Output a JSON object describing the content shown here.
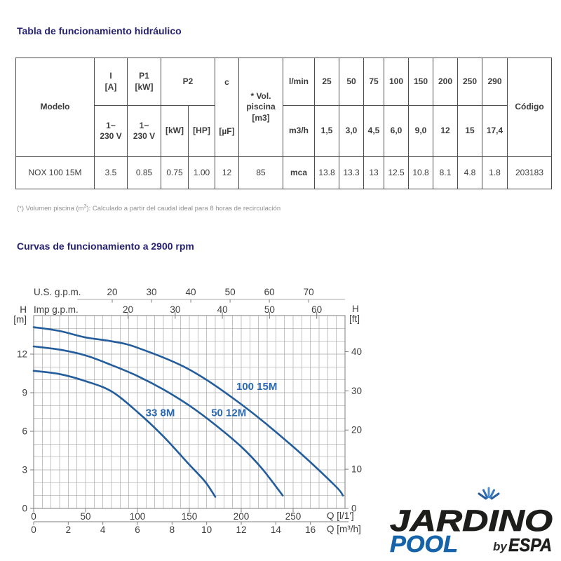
{
  "page": {
    "colors": {
      "navy_title": "#262273",
      "table_text": "#3c3c3c",
      "table_border": "#4d4d4d",
      "footnote_gray": "#8f8f8f",
      "grid": "#a9a9a9",
      "axis_dark": "#7d7d7d",
      "axis_text": "#3d3d3d",
      "curve_blue": "#235d9c",
      "curve_label_blue": "#2a6ab3",
      "logo_black": "#1d1d1b",
      "logo_blue": "#1563a8"
    }
  },
  "section1": {
    "title": "Tabla de funcionamiento hidráulico"
  },
  "section2": {
    "title": "Curvas de funcionamiento a 2900 rpm"
  },
  "table": {
    "h": {
      "modelo": "Modelo",
      "i1": "I",
      "i2": "[A]",
      "p1a": "P1",
      "p1b": "[kW]",
      "p2": "P2",
      "v1": "1~",
      "v2": "230 V",
      "kw": "[kW]",
      "hp": "[HP]",
      "c": "c",
      "uf": "[µF]",
      "vol1": "* Vol.",
      "vol2": "piscina",
      "vol3": "[m3]",
      "lmin": "l/min",
      "flow_lmin": [
        "25",
        "50",
        "75",
        "100",
        "150",
        "200",
        "250",
        "290"
      ],
      "m3h": "m3/h",
      "flow_m3h": [
        "1,5",
        "3,0",
        "4,5",
        "6,0",
        "9,0",
        "12",
        "15",
        "17,4"
      ],
      "codigo": "Código"
    },
    "row": {
      "modelo": "NOX 100 15M",
      "i": "3.5",
      "p1": "0.85",
      "p2_kw": "0.75",
      "p2_hp": "1.00",
      "c": "12",
      "vol": "85",
      "unit": "mca",
      "heads": [
        "13.8",
        "13.3",
        "13",
        "12.5",
        "10.8",
        "8.1",
        "4.8",
        "1.8"
      ],
      "codigo": "203183"
    }
  },
  "footnote": {
    "pre": "(*) Volumen piscina (m",
    "sup": "3",
    "post": "): Calculado a partir del caudal ideal para 8 horas de recirculación"
  },
  "chart_data": {
    "type": "line",
    "title": "Curvas de funcionamiento a 2900 rpm",
    "xlabel": "Q (caudal)",
    "ylabel": "H (altura)",
    "xlim_lmin": [
      0,
      300
    ],
    "ylim_m": [
      0,
      15
    ],
    "grid": true,
    "grid_step_lmin": 8.3333,
    "grid_step_m": 1,
    "x_axes": [
      {
        "label": "U.S. g.p.m.",
        "pos": "top-outer",
        "factor": 3.785,
        "ticks": [
          20,
          30,
          40,
          50,
          60,
          70
        ]
      },
      {
        "label": "Imp g.p.m.",
        "pos": "top-inner",
        "factor": 4.546,
        "ticks": [
          20,
          30,
          40,
          50,
          60
        ]
      },
      {
        "label": "Q [l/1']",
        "pos": "bottom-inner",
        "factor": 1,
        "ticks": [
          0,
          50,
          100,
          150,
          200,
          250
        ]
      },
      {
        "label": "Q [m³/h]",
        "pos": "bottom-outer",
        "factor": 16.6667,
        "ticks": [
          0,
          2,
          4,
          6,
          8,
          10,
          12,
          14,
          16
        ]
      }
    ],
    "y_axes": [
      {
        "label": "H",
        "unit": "[m]",
        "side": "left",
        "factor": 1,
        "ticks": [
          0,
          3,
          6,
          9,
          12
        ]
      },
      {
        "label": "H",
        "unit": "[ft]",
        "side": "right",
        "factor": 0.3048,
        "ticks": [
          0,
          10,
          20,
          30,
          40
        ]
      }
    ],
    "series": [
      {
        "name": "33 8M",
        "label_q": 122,
        "label_h": 7.45,
        "points": [
          [
            0,
            10.7
          ],
          [
            25,
            10.45
          ],
          [
            50,
            9.9
          ],
          [
            75,
            9.1
          ],
          [
            100,
            7.5
          ],
          [
            125,
            5.6
          ],
          [
            150,
            3.4
          ],
          [
            165,
            2.1
          ],
          [
            175,
            0.9
          ]
        ]
      },
      {
        "name": "50 12M",
        "label_q": 188,
        "label_h": 7.45,
        "points": [
          [
            0,
            12.6
          ],
          [
            25,
            12.35
          ],
          [
            50,
            11.9
          ],
          [
            75,
            11.15
          ],
          [
            100,
            10.3
          ],
          [
            125,
            9.25
          ],
          [
            150,
            8
          ],
          [
            175,
            6.5
          ],
          [
            200,
            4.8
          ],
          [
            220,
            3.1
          ],
          [
            240,
            1
          ]
        ]
      },
      {
        "name": "100 15M",
        "label_q": 215,
        "label_h": 9.5,
        "points": [
          [
            0,
            14.1
          ],
          [
            25,
            13.8
          ],
          [
            50,
            13.3
          ],
          [
            75,
            13
          ],
          [
            100,
            12.5
          ],
          [
            150,
            10.8
          ],
          [
            200,
            8.1
          ],
          [
            250,
            4.8
          ],
          [
            290,
            1.8
          ],
          [
            298,
            1
          ]
        ]
      }
    ]
  },
  "logo": {
    "word_top": "JARDINO",
    "word_bottom": "POOL",
    "by": "by",
    "brand": "ESPA"
  }
}
